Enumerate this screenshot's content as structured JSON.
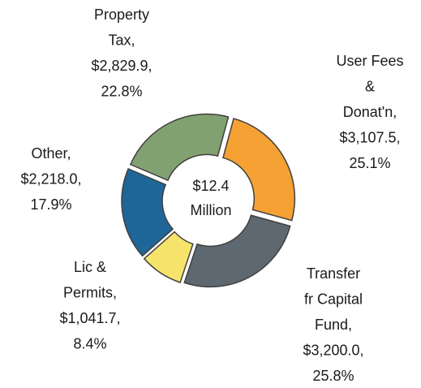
{
  "chart_data": {
    "type": "donut",
    "categories": [
      "Property Tax,",
      "User Fees & Donat'n,",
      "Transfer fr Capital Fund,",
      "Lic & Permits,",
      "Other,"
    ],
    "values": [
      2829.9,
      3107.5,
      3200.0,
      1041.7,
      2218.0
    ],
    "value_labels": [
      "$2,829.9,",
      "$3,107.5,",
      "$3,200.0,",
      "$1,041.7,",
      "$2,218.0,"
    ],
    "percents": [
      22.8,
      25.1,
      25.8,
      8.4,
      17.9
    ],
    "percent_labels": [
      "22.8%",
      "25.1%",
      "25.8%",
      "8.4%",
      "17.9%"
    ],
    "colors": [
      "#82a171",
      "#f5a133",
      "#5e6870",
      "#f6e36b",
      "#1e6698"
    ],
    "center_label": "$12.4 Million"
  }
}
